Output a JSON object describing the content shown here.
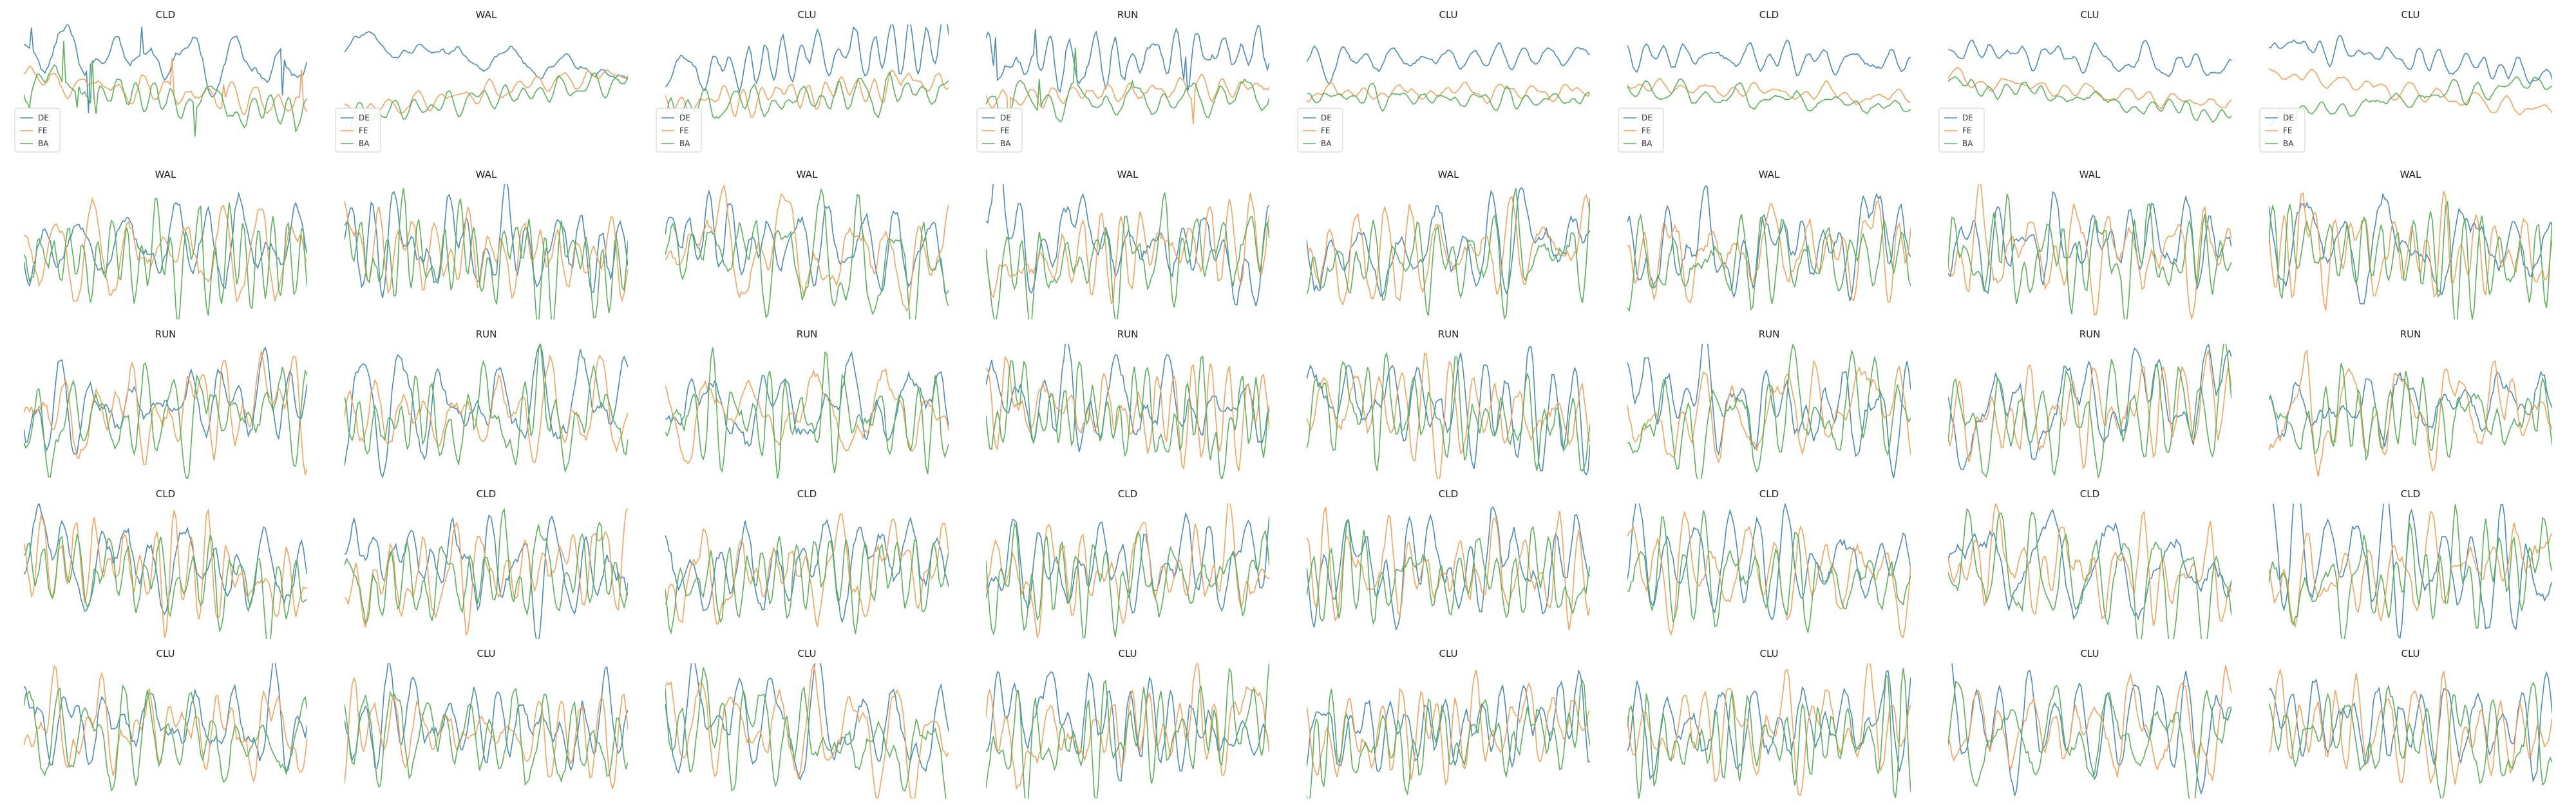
{
  "chart_data": {
    "type": "line",
    "layout": {
      "rows": 5,
      "cols": 8
    },
    "axes_visible": false,
    "grid": false,
    "colors": {
      "DE": "#4c8ab8",
      "FE": "#f2a35e",
      "BA": "#5bb15b"
    },
    "row_titles": [
      [
        "CLD",
        "WAL",
        "CLU",
        "RUN",
        "CLU",
        "CLD",
        "CLU",
        "CLU"
      ],
      [
        "WAL",
        "WAL",
        "WAL",
        "WAL",
        "WAL",
        "WAL",
        "WAL",
        "WAL"
      ],
      [
        "RUN",
        "RUN",
        "RUN",
        "RUN",
        "RUN",
        "RUN",
        "RUN",
        "RUN"
      ],
      [
        "CLD",
        "CLD",
        "CLD",
        "CLD",
        "CLD",
        "CLD",
        "CLD",
        "CLD"
      ],
      [
        "CLU",
        "CLU",
        "CLU",
        "CLU",
        "CLU",
        "CLU",
        "CLU",
        "CLU"
      ]
    ],
    "legend": {
      "rows": [
        0
      ],
      "placement": "lower-left",
      "entries": [
        "DE",
        "FE",
        "BA"
      ]
    },
    "series_names": [
      "DE",
      "FE",
      "BA"
    ]
  }
}
